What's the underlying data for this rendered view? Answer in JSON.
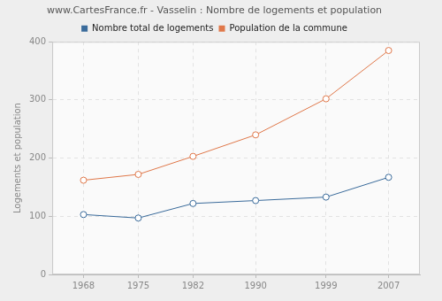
{
  "chart_data": {
    "type": "line",
    "title": "www.CartesFrance.fr - Vasselin : Nombre de logements et population",
    "y_label": "Logements et population",
    "x": [
      1968,
      1975,
      1982,
      1990,
      1999,
      2007
    ],
    "series": [
      {
        "name": "Nombre total de logements",
        "color": "#3a6b9b",
        "marker": "circle",
        "values": [
          103,
          97,
          122,
          127,
          133,
          167
        ]
      },
      {
        "name": "Population de la commune",
        "color": "#e0784a",
        "marker": "circle",
        "values": [
          162,
          172,
          203,
          240,
          302,
          385
        ]
      }
    ],
    "xlim": [
      1964,
      2011
    ],
    "xticks": [
      1968,
      1975,
      1982,
      1990,
      1999,
      2007
    ],
    "ylim": [
      0,
      400
    ],
    "yticks": [
      0,
      100,
      200,
      300,
      400
    ],
    "grid": true,
    "legend": "top"
  }
}
